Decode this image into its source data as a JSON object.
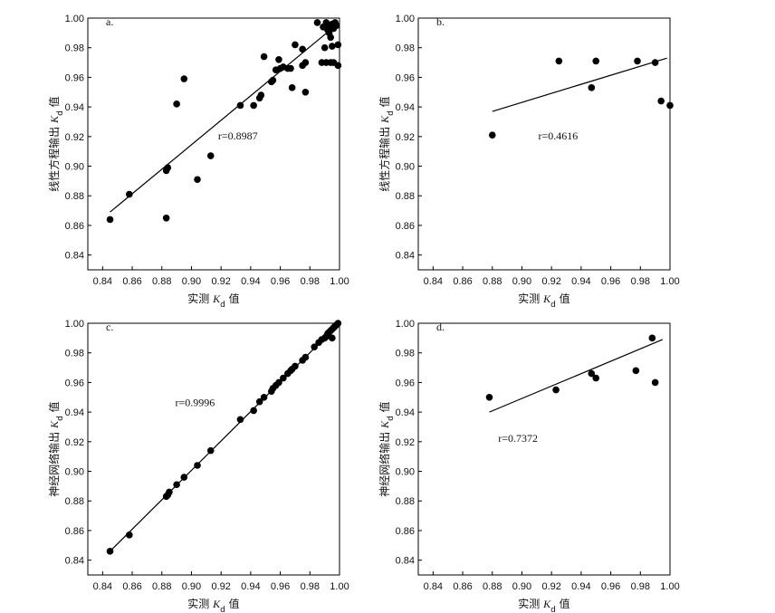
{
  "chart_data": [
    {
      "type": "scatter",
      "panel_label": "a.",
      "xlabel": "实测 Kd 值",
      "ylabel": "线性方程输出 Kd 值",
      "xlim": [
        0.83,
        1.0
      ],
      "ylim": [
        0.83,
        1.0
      ],
      "xticks": [
        "0.84",
        "0.86",
        "0.88",
        "0.90",
        "0.92",
        "0.94",
        "0.96",
        "0.98",
        "1.00"
      ],
      "yticks": [
        "0.84",
        "0.86",
        "0.88",
        "0.90",
        "0.92",
        "0.94",
        "0.96",
        "0.98",
        "1.00"
      ],
      "annotation": "r=0.8987",
      "fit_line": [
        [
          0.845,
          0.869
        ],
        [
          0.995,
          0.993
        ]
      ],
      "points": [
        [
          0.845,
          0.864
        ],
        [
          0.858,
          0.881
        ],
        [
          0.883,
          0.865
        ],
        [
          0.883,
          0.897
        ],
        [
          0.884,
          0.899
        ],
        [
          0.89,
          0.942
        ],
        [
          0.895,
          0.959
        ],
        [
          0.904,
          0.891
        ],
        [
          0.913,
          0.907
        ],
        [
          0.933,
          0.941
        ],
        [
          0.942,
          0.941
        ],
        [
          0.946,
          0.946
        ],
        [
          0.947,
          0.948
        ],
        [
          0.949,
          0.974
        ],
        [
          0.954,
          0.957
        ],
        [
          0.955,
          0.958
        ],
        [
          0.957,
          0.965
        ],
        [
          0.959,
          0.972
        ],
        [
          0.96,
          0.966
        ],
        [
          0.962,
          0.967
        ],
        [
          0.965,
          0.966
        ],
        [
          0.967,
          0.966
        ],
        [
          0.968,
          0.953
        ],
        [
          0.97,
          0.982
        ],
        [
          0.975,
          0.979
        ],
        [
          0.975,
          0.968
        ],
        [
          0.977,
          0.97
        ],
        [
          0.977,
          0.95
        ],
        [
          0.985,
          0.997
        ],
        [
          0.988,
          0.97
        ],
        [
          0.989,
          0.994
        ],
        [
          0.99,
          0.98
        ],
        [
          0.991,
          0.997
        ],
        [
          0.991,
          0.97
        ],
        [
          0.992,
          0.992
        ],
        [
          0.993,
          0.995
        ],
        [
          0.993,
          0.99
        ],
        [
          0.994,
          0.987
        ],
        [
          0.994,
          0.97
        ],
        [
          0.995,
          0.996
        ],
        [
          0.995,
          0.981
        ],
        [
          0.996,
          0.993
        ],
        [
          0.996,
          0.97
        ],
        [
          0.997,
          0.997
        ],
        [
          0.998,
          0.995
        ],
        [
          0.999,
          0.982
        ],
        [
          0.999,
          0.968
        ]
      ]
    },
    {
      "type": "scatter",
      "panel_label": "b.",
      "xlabel": "实测 Kd 值",
      "ylabel": "线性方程输出 Kd 值",
      "xlim": [
        0.83,
        1.0
      ],
      "ylim": [
        0.83,
        1.0
      ],
      "xticks": [
        "0.84",
        "0.86",
        "0.88",
        "0.90",
        "0.92",
        "0.94",
        "0.96",
        "0.98",
        "1.00"
      ],
      "yticks": [
        "0.84",
        "0.86",
        "0.88",
        "0.90",
        "0.92",
        "0.94",
        "0.96",
        "0.98",
        "1.00"
      ],
      "annotation": "r=0.4616",
      "fit_line": [
        [
          0.88,
          0.937
        ],
        [
          0.998,
          0.973
        ]
      ],
      "points": [
        [
          0.88,
          0.921
        ],
        [
          0.925,
          0.971
        ],
        [
          0.947,
          0.953
        ],
        [
          0.95,
          0.971
        ],
        [
          0.978,
          0.971
        ],
        [
          0.99,
          0.97
        ],
        [
          0.994,
          0.944
        ],
        [
          1.0,
          0.941
        ]
      ]
    },
    {
      "type": "scatter",
      "panel_label": "c.",
      "xlabel": "实测 Kd 值",
      "ylabel": "神经网络输出 Kd 值",
      "xlim": [
        0.83,
        1.0
      ],
      "ylim": [
        0.83,
        1.0
      ],
      "xticks": [
        "0.84",
        "0.86",
        "0.88",
        "0.90",
        "0.92",
        "0.94",
        "0.96",
        "0.98",
        "1.00"
      ],
      "yticks": [
        "0.84",
        "0.86",
        "0.88",
        "0.90",
        "0.92",
        "0.94",
        "0.96",
        "0.98",
        "1.00"
      ],
      "annotation": "r=0.9996",
      "fit_line": [
        [
          0.845,
          0.846
        ],
        [
          0.999,
          0.999
        ]
      ],
      "points": [
        [
          0.845,
          0.846
        ],
        [
          0.858,
          0.857
        ],
        [
          0.883,
          0.883
        ],
        [
          0.884,
          0.884
        ],
        [
          0.885,
          0.886
        ],
        [
          0.89,
          0.891
        ],
        [
          0.895,
          0.896
        ],
        [
          0.904,
          0.904
        ],
        [
          0.913,
          0.914
        ],
        [
          0.933,
          0.935
        ],
        [
          0.942,
          0.941
        ],
        [
          0.946,
          0.947
        ],
        [
          0.949,
          0.95
        ],
        [
          0.954,
          0.954
        ],
        [
          0.955,
          0.956
        ],
        [
          0.957,
          0.958
        ],
        [
          0.959,
          0.96
        ],
        [
          0.962,
          0.963
        ],
        [
          0.965,
          0.966
        ],
        [
          0.967,
          0.968
        ],
        [
          0.968,
          0.969
        ],
        [
          0.97,
          0.971
        ],
        [
          0.975,
          0.975
        ],
        [
          0.977,
          0.977
        ],
        [
          0.983,
          0.984
        ],
        [
          0.986,
          0.987
        ],
        [
          0.988,
          0.989
        ],
        [
          0.99,
          0.99
        ],
        [
          0.991,
          0.991
        ],
        [
          0.992,
          0.993
        ],
        [
          0.993,
          0.994
        ],
        [
          0.994,
          0.995
        ],
        [
          0.995,
          0.996
        ],
        [
          0.995,
          0.99
        ],
        [
          0.996,
          0.997
        ],
        [
          0.997,
          0.998
        ],
        [
          0.998,
          0.999
        ],
        [
          0.999,
          1.0
        ]
      ]
    },
    {
      "type": "scatter",
      "panel_label": "d.",
      "xlabel": "实测 Kd 值",
      "ylabel": "神经网络输出 Kd 值",
      "xlim": [
        0.83,
        1.0
      ],
      "ylim": [
        0.83,
        1.0
      ],
      "xticks": [
        "0.84",
        "0.86",
        "0.88",
        "0.90",
        "0.92",
        "0.94",
        "0.96",
        "0.98",
        "1.00"
      ],
      "yticks": [
        "0.84",
        "0.86",
        "0.88",
        "0.90",
        "0.92",
        "0.94",
        "0.96",
        "0.98",
        "1.00"
      ],
      "annotation": "r=0.7372",
      "fit_line": [
        [
          0.878,
          0.94
        ],
        [
          0.995,
          0.989
        ]
      ],
      "points": [
        [
          0.878,
          0.95
        ],
        [
          0.923,
          0.955
        ],
        [
          0.947,
          0.966
        ],
        [
          0.95,
          0.963
        ],
        [
          0.977,
          0.968
        ],
        [
          0.988,
          0.99
        ],
        [
          0.99,
          0.96
        ]
      ]
    }
  ]
}
